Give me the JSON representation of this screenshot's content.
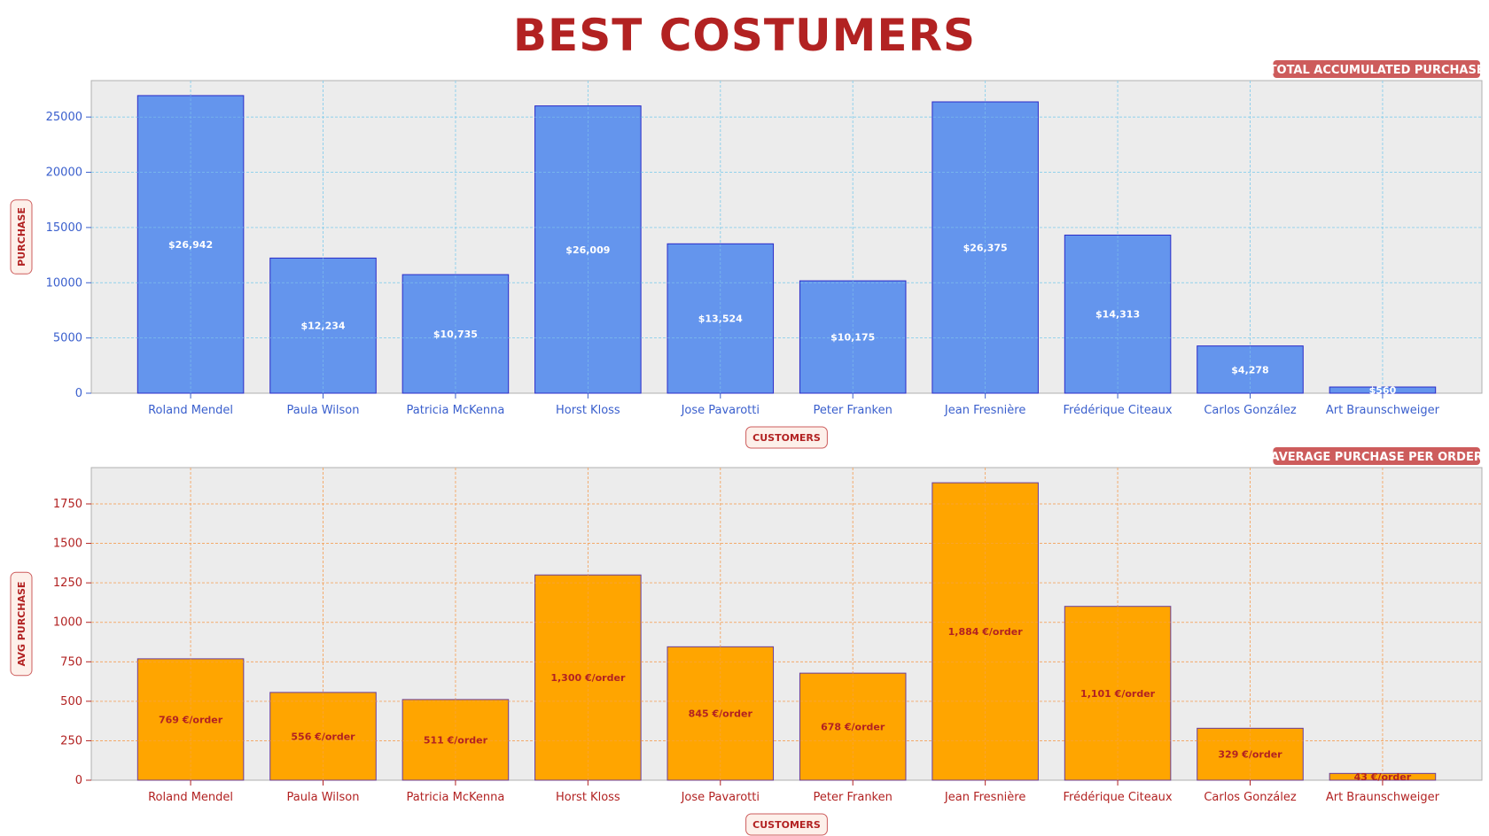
{
  "page": {
    "title": "BEST COSTUMERS"
  },
  "chart_data": [
    {
      "type": "bar",
      "badge": "TOTAL ACCUMULATED PURCHASE",
      "xlabel": "CUSTOMERS",
      "ylabel": "PURCHASE",
      "categories": [
        "Roland Mendel",
        "Paula Wilson",
        "Patricia McKenna",
        "Horst Kloss",
        "Jose Pavarotti",
        "Peter Franken",
        "Jean Fresnière",
        "Frédérique Citeaux",
        "Carlos González",
        "Art Braunschweiger"
      ],
      "values": [
        26942,
        12234,
        10735,
        26009,
        13524,
        10175,
        26375,
        14313,
        4278,
        560
      ],
      "data_labels": [
        "$26,942",
        "$12,234",
        "$10,735",
        "$26,009",
        "$13,524",
        "$10,175",
        "$26,375",
        "$14,313",
        "$4,278",
        "$560"
      ],
      "yticks": [
        "0",
        "5000",
        "10000",
        "15000",
        "20000",
        "25000"
      ],
      "ylim": [
        0,
        28300
      ],
      "grid": true,
      "colors": {
        "bar": "#6495ed",
        "edge": "#2b2bc8",
        "tick": "#3a5fcd",
        "grid": "#87ceeb",
        "label": "#ffffff"
      }
    },
    {
      "type": "bar",
      "badge": "AVERAGE PURCHASE PER ORDER",
      "xlabel": "CUSTOMERS",
      "ylabel": "AVG PURCHASE",
      "categories": [
        "Roland Mendel",
        "Paula Wilson",
        "Patricia McKenna",
        "Horst Kloss",
        "Jose Pavarotti",
        "Peter Franken",
        "Jean Fresnière",
        "Frédérique Citeaux",
        "Carlos González",
        "Art Braunschweiger"
      ],
      "values": [
        769,
        556,
        511,
        1300,
        845,
        678,
        1884,
        1101,
        329,
        43
      ],
      "data_labels": [
        "769 €/order",
        "556 €/order",
        "511 €/order",
        "1,300 €/order",
        "845 €/order",
        "678 €/order",
        "1,884 €/order",
        "1,101 €/order",
        "329 €/order",
        "43 €/order"
      ],
      "yticks": [
        "0",
        "250",
        "500",
        "750",
        "1000",
        "1250",
        "1500",
        "1750"
      ],
      "ylim": [
        0,
        1980
      ],
      "grid": true,
      "colors": {
        "bar": "#ffa500",
        "edge": "#6a3d9a",
        "tick": "#b22222",
        "grid": "#f4a460",
        "label": "#b22222"
      }
    }
  ],
  "colors": {
    "title": "#b22222",
    "badge_bg": "#cd5c5c",
    "axis_badge_bg": "#fdf0ea",
    "axis_badge_border": "#cd5c5c",
    "plot_bg": "#ececec"
  }
}
